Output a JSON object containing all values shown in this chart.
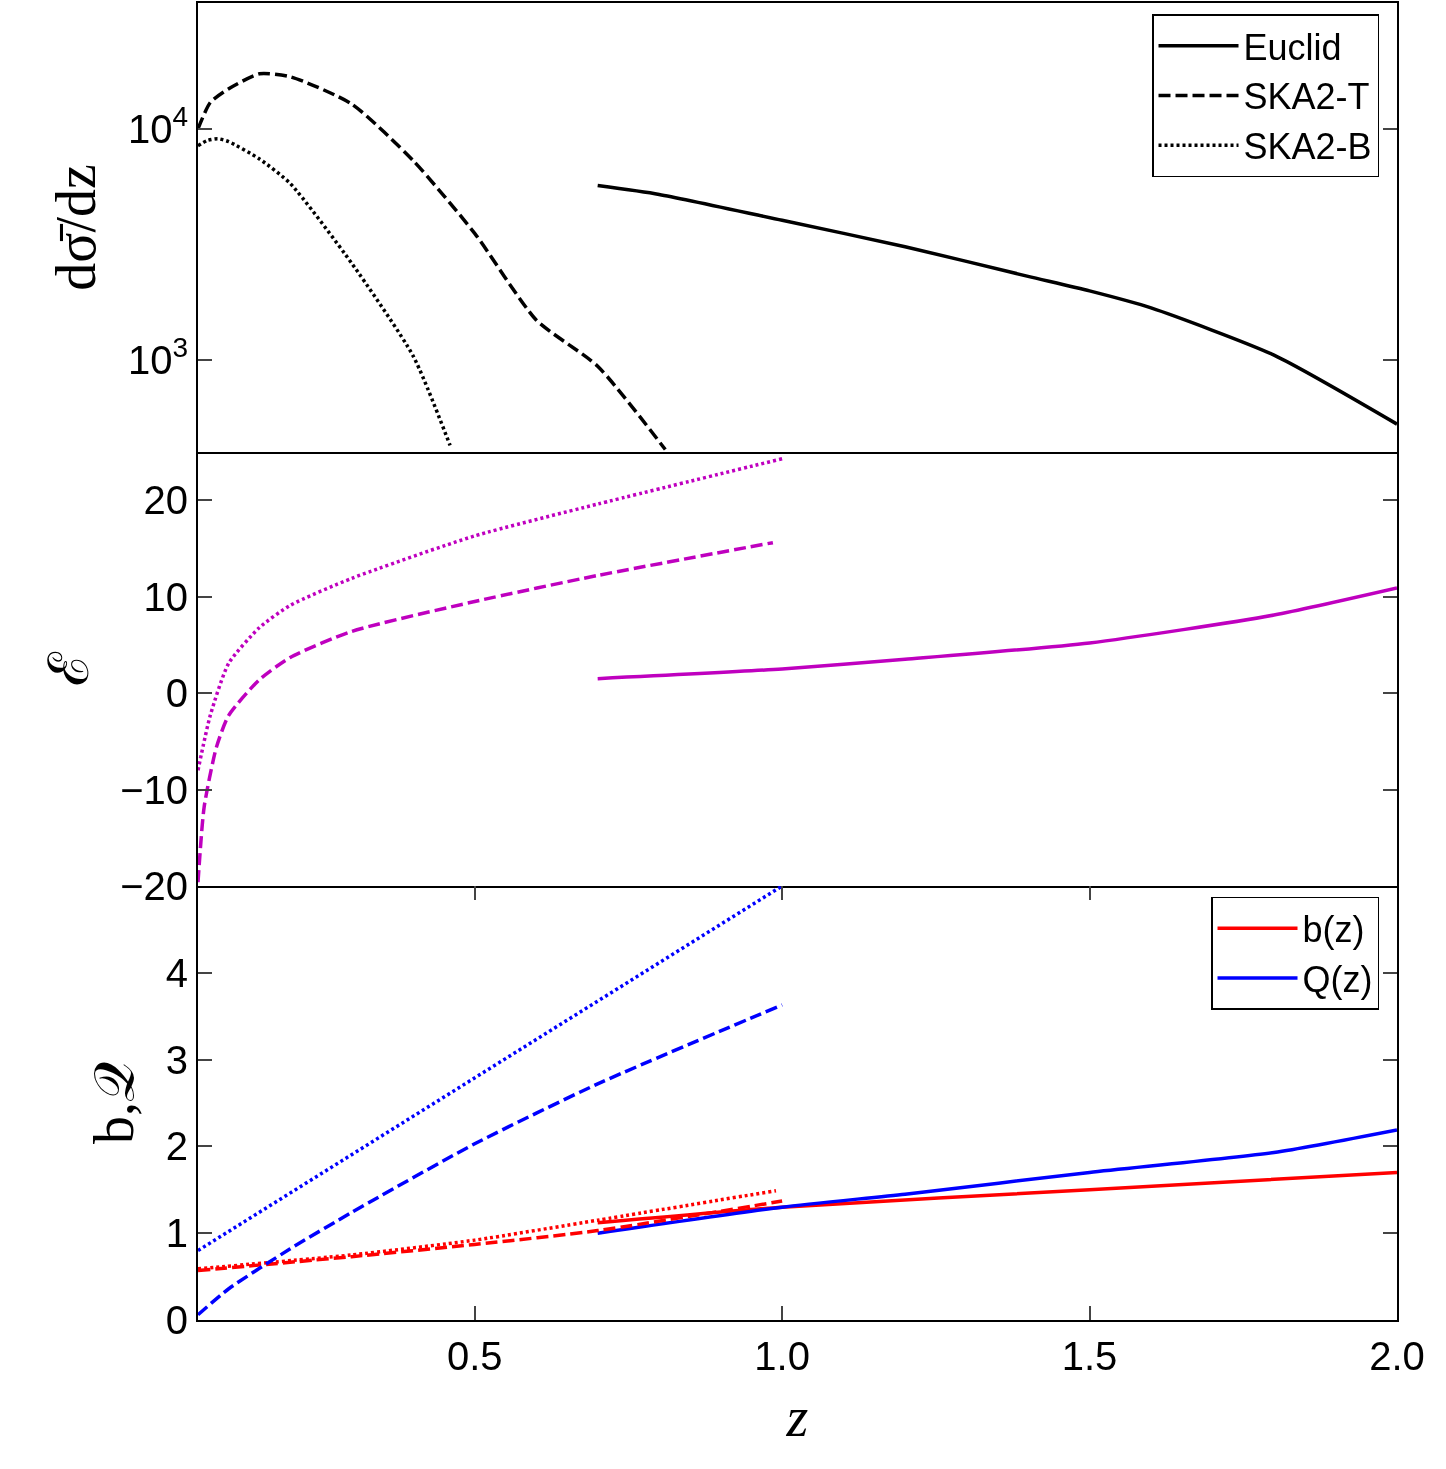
{
  "chart_data": [
    {
      "type": "line",
      "ylabel": "dσ̄/dz",
      "log": true,
      "legend": "top right",
      "tick_labels": "y",
      "xlim": [
        0.05,
        2.0
      ],
      "ylim": [
        400,
        35000
      ],
      "yticks": [
        {
          "value": 1000,
          "label": "10$^{3}$"
        },
        {
          "value": 10000,
          "label": "10$^{4}$"
        }
      ],
      "series": [
        {
          "name": "Euclid",
          "color": "#000000",
          "line_style": "solid",
          "x": [
            0.7,
            0.8,
            1.0,
            1.2,
            1.4,
            1.5,
            1.6,
            1.8,
            2.0
          ],
          "values": [
            5680,
            5200,
            4020,
            3090,
            2300,
            1990,
            1680,
            1050,
            528
          ]
        },
        {
          "name": "SKA2-T",
          "color": "#000000",
          "line_style": "dashed",
          "x": [
            0.05,
            0.07,
            0.1,
            0.15,
            0.2,
            0.3,
            0.4,
            0.5,
            0.6,
            0.7,
            0.81
          ],
          "values": [
            10000,
            13000,
            14900,
            17300,
            16800,
            12800,
            7280,
            3530,
            1490,
            940,
            410
          ]
        },
        {
          "name": "SKA2-B",
          "color": "#000000",
          "line_style": "dotted",
          "x": [
            0.05,
            0.065,
            0.082,
            0.1,
            0.15,
            0.2,
            0.3,
            0.4,
            0.46
          ],
          "values": [
            8450,
            8900,
            9060,
            8800,
            7400,
            5800,
            2620,
            1040,
            427
          ]
        }
      ]
    },
    {
      "type": "line",
      "ylabel": "ℰ",
      "tick_labels": "y",
      "xlim": [
        0.05,
        2.0
      ],
      "ylim": [
        -20,
        25
      ],
      "yticks": [
        {
          "value": -20,
          "label": "−20"
        },
        {
          "value": -10,
          "label": "−10"
        },
        0,
        10,
        20
      ],
      "series": [
        {
          "color": "#bf00bf",
          "line_style": "solid",
          "x": [
            0.7,
            1.0,
            1.2,
            1.5,
            1.8,
            2.0
          ],
          "values": [
            1.5,
            2.5,
            3.5,
            5.2,
            8.1,
            10.9
          ]
        },
        {
          "color": "#bf00bf",
          "line_style": "dashed",
          "x": [
            0.05,
            0.06,
            0.08,
            0.1,
            0.15,
            0.2,
            0.3,
            0.5,
            0.7,
            0.985
          ],
          "values": [
            -19.6,
            -11.8,
            -5.6,
            -2.3,
            1.4,
            3.7,
            6.4,
            9.5,
            12.2,
            15.6
          ]
        },
        {
          "color": "#bf00bf",
          "line_style": "dotted",
          "x": [
            0.05,
            0.07,
            0.1,
            0.15,
            0.2,
            0.3,
            0.5,
            0.7,
            1.0
          ],
          "values": [
            -8,
            -2.3,
            3.1,
            6.8,
            9.1,
            11.9,
            16.3,
            19.6,
            24.3
          ]
        }
      ]
    },
    {
      "type": "line",
      "ylabel": "b,𝒬",
      "xlabel": "z",
      "legend": "top right",
      "xlim": [
        0.05,
        2.0
      ],
      "xticks": [
        0.5,
        {
          "value": 1,
          "label": "1.0"
        },
        1.5,
        {
          "value": 2,
          "label": "2.0"
        }
      ],
      "ylim": [
        0,
        5
      ],
      "yticks": [
        0,
        1,
        2,
        3,
        4
      ],
      "series": [
        {
          "name": "b(z)",
          "color": "#ff0000",
          "line_style": "solid",
          "x": [
            0.7,
            1.0,
            1.5,
            2.0
          ],
          "values": [
            1.12,
            1.3,
            1.5,
            1.7
          ]
        },
        {
          "name": "Q(z)",
          "color": "#0000ff",
          "line_style": "solid",
          "x": [
            0.7,
            1.0,
            1.2,
            1.5,
            1.8,
            2.0
          ],
          "values": [
            1.0,
            1.3,
            1.45,
            1.7,
            1.93,
            2.19
          ]
        },
        {
          "color": "#ff0000",
          "line_style": "dashed",
          "x": [
            0.05,
            0.3,
            0.5,
            0.7,
            1.0
          ],
          "values": [
            0.57,
            0.73,
            0.87,
            1.03,
            1.37
          ]
        },
        {
          "color": "#ff0000",
          "line_style": "dotted",
          "x": [
            0.05,
            0.3,
            0.5,
            0.7,
            0.99
          ],
          "values": [
            0.59,
            0.75,
            0.92,
            1.15,
            1.49
          ]
        },
        {
          "color": "#0000ff",
          "line_style": "dashed",
          "x": [
            0.05,
            0.1,
            0.2,
            0.3,
            0.5,
            0.7,
            1.0
          ],
          "values": [
            0.06,
            0.36,
            0.82,
            1.24,
            2.03,
            2.72,
            3.63
          ]
        },
        {
          "color": "#0000ff",
          "line_style": "dotted",
          "x": [
            0.05,
            1.0
          ],
          "values": [
            0.8,
            5.0
          ]
        }
      ]
    }
  ]
}
